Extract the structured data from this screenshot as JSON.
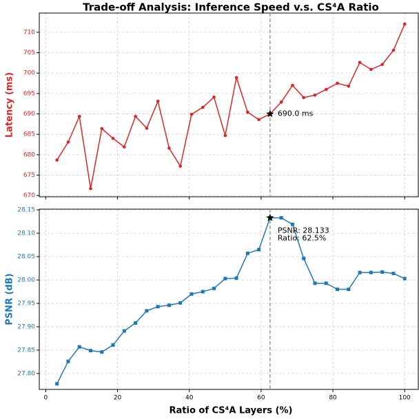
{
  "chart_data": [
    {
      "type": "line",
      "title": "Trade-off Analysis: Inference Speed v.s. CS⁴A Ratio",
      "ylabel": "Latency (ms)",
      "x": [
        3.125,
        6.25,
        9.375,
        12.5,
        15.625,
        18.75,
        21.875,
        25,
        28.125,
        31.25,
        34.375,
        37.5,
        40.625,
        43.75,
        46.875,
        50,
        53.125,
        56.25,
        59.375,
        62.5,
        65.625,
        68.75,
        71.875,
        75,
        78.125,
        81.25,
        84.375,
        87.5,
        90.625,
        93.75,
        96.875,
        100
      ],
      "series": [
        {
          "name": "Latency",
          "color": "#d62728",
          "marker": "circle",
          "values": [
            678.7,
            683.1,
            689.4,
            671.7,
            686.4,
            684.0,
            681.9,
            689.4,
            686.5,
            693.1,
            681.6,
            677.2,
            689.9,
            691.6,
            694.1,
            684.7,
            698.9,
            690.4,
            688.6,
            690.0,
            692.9,
            697.0,
            694.0,
            694.6,
            696.0,
            697.5,
            696.8,
            702.6,
            700.9,
            702.1,
            705.6,
            712.0
          ]
        }
      ],
      "vline": 62.5,
      "annotation": "690.0 ms",
      "xlim": [
        -1.8,
        103.8
      ],
      "xticks": [
        0,
        20,
        40,
        60,
        80,
        100
      ],
      "ylim": [
        669.7,
        714.7
      ],
      "yticks": [
        670,
        675,
        680,
        685,
        690,
        695,
        700,
        705,
        710
      ],
      "grid": true
    },
    {
      "type": "line",
      "ylabel": "PSNR (dB)",
      "xlabel": "Ratio of CS⁴A Layers (%)",
      "x": [
        3.125,
        6.25,
        9.375,
        12.5,
        15.625,
        18.75,
        21.875,
        25,
        28.125,
        31.25,
        34.375,
        37.5,
        40.625,
        43.75,
        46.875,
        50,
        53.125,
        56.25,
        59.375,
        62.5,
        65.625,
        68.75,
        71.875,
        75,
        78.125,
        81.25,
        84.375,
        87.5,
        90.625,
        93.75,
        96.875,
        100
      ],
      "series": [
        {
          "name": "PSNR",
          "color": "#1f77b4",
          "marker": "square",
          "values": [
            27.778,
            27.826,
            27.857,
            27.849,
            27.846,
            27.861,
            27.891,
            27.908,
            27.934,
            27.943,
            27.946,
            27.951,
            27.97,
            27.975,
            27.982,
            28.003,
            28.004,
            28.057,
            28.065,
            28.133,
            28.133,
            28.119,
            28.046,
            27.993,
            27.993,
            27.98,
            27.98,
            28.016,
            28.016,
            28.017,
            28.014,
            28.003
          ]
        }
      ],
      "vline": 62.5,
      "annotation": [
        "PSNR: 28.133",
        "Ratio: 62.5%"
      ],
      "xlim": [
        -1.8,
        103.8
      ],
      "xticks": [
        0,
        20,
        40,
        60,
        80,
        100
      ],
      "ylim": [
        27.766,
        28.1515
      ],
      "yticks": [
        {
          "value": 27.8,
          "label": "27.80"
        },
        {
          "value": 27.85,
          "label": "27.85"
        },
        {
          "value": 27.9,
          "label": "27.90"
        },
        {
          "value": 27.95,
          "label": "27.95"
        },
        {
          "value": 28.0,
          "label": "28.00"
        },
        {
          "value": 28.05,
          "label": "28.05"
        },
        {
          "value": 28.1,
          "label": "28.10"
        },
        {
          "value": 28.15,
          "label": "28.15"
        }
      ],
      "grid": true
    }
  ]
}
